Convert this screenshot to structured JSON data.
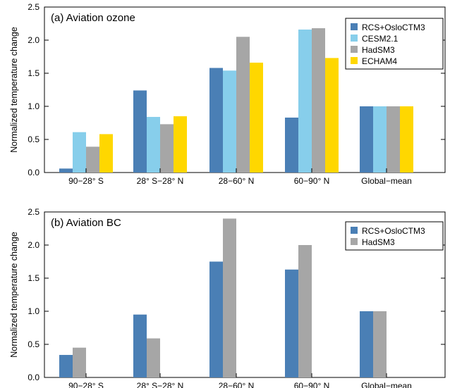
{
  "chart_data": [
    {
      "type": "bar",
      "title": "(a) Aviation ozone",
      "xlabel": "",
      "ylabel": "Normalized temperature change",
      "ylim": [
        0,
        2.5
      ],
      "yticks": [
        "0.0",
        "0.5",
        "1.0",
        "1.5",
        "2.0",
        "2.5"
      ],
      "categories": [
        "90−28° S",
        "28° S−28° N",
        "28−60° N",
        "60−90° N",
        "Global−mean"
      ],
      "series": [
        {
          "name": "RCS+OsloCTM3",
          "color": "#4a7fb5",
          "values": [
            0.06,
            1.24,
            1.58,
            0.83,
            1.0
          ]
        },
        {
          "name": "CESM2.1",
          "color": "#87ceeb",
          "values": [
            0.61,
            0.84,
            1.54,
            2.16,
            1.0
          ]
        },
        {
          "name": "HadSM3",
          "color": "#a6a6a6",
          "values": [
            0.39,
            0.73,
            2.05,
            2.18,
            1.0
          ]
        },
        {
          "name": "ECHAM4",
          "color": "#ffd700",
          "values": [
            0.58,
            0.85,
            1.66,
            1.73,
            1.0
          ]
        }
      ],
      "legend_position": "top-right",
      "grid": false
    },
    {
      "type": "bar",
      "title": "(b) Aviation BC",
      "xlabel": "",
      "ylabel": "Normalized temperature change",
      "ylim": [
        0,
        2.5
      ],
      "yticks": [
        "0.0",
        "0.5",
        "1.0",
        "1.5",
        "2.0",
        "2.5"
      ],
      "categories": [
        "90−28° S",
        "28° S−28° N",
        "28−60° N",
        "60−90° N",
        "Global−mean"
      ],
      "series": [
        {
          "name": "RCS+OsloCTM3",
          "color": "#4a7fb5",
          "values": [
            0.34,
            0.95,
            1.75,
            1.63,
            1.0
          ]
        },
        {
          "name": "HadSM3",
          "color": "#a6a6a6",
          "values": [
            0.45,
            0.59,
            2.4,
            2.0,
            1.0
          ]
        }
      ],
      "legend_position": "top-right",
      "grid": false
    }
  ]
}
